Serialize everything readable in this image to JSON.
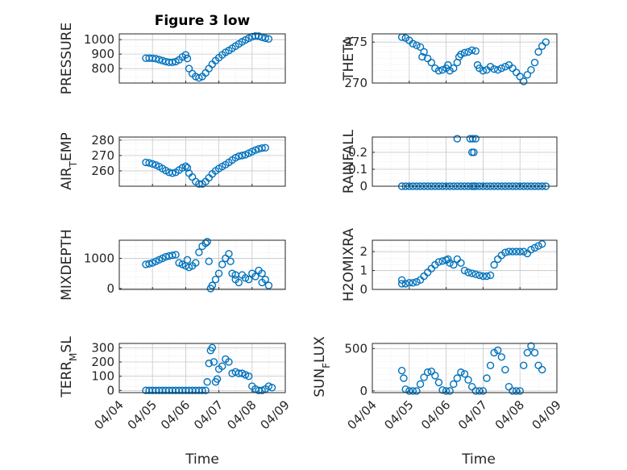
{
  "figure": {
    "title": "Figure 3 low",
    "xlabel": "Time",
    "xticks": [
      "04/04",
      "04/05",
      "04/06",
      "04/07",
      "04/08",
      "04/09"
    ],
    "marker_color": "#0072BD"
  },
  "chart_data": [
    {
      "type": "scatter",
      "name": "pressure",
      "ylabel": "PRESSURE",
      "title": "Figure 3 low",
      "xlim": [
        0,
        5
      ],
      "ylim": [
        700,
        1040
      ],
      "yticks": [
        800,
        900,
        1000
      ],
      "points": [
        [
          0.8,
          872
        ],
        [
          0.9,
          872
        ],
        [
          1.0,
          871
        ],
        [
          1.1,
          868
        ],
        [
          1.2,
          862
        ],
        [
          1.3,
          855
        ],
        [
          1.4,
          848
        ],
        [
          1.5,
          843
        ],
        [
          1.6,
          843
        ],
        [
          1.7,
          848
        ],
        [
          1.8,
          860
        ],
        [
          1.9,
          880
        ],
        [
          2.0,
          895
        ],
        [
          2.05,
          870
        ],
        [
          2.1,
          800
        ],
        [
          2.2,
          765
        ],
        [
          2.3,
          745
        ],
        [
          2.4,
          735
        ],
        [
          2.5,
          745
        ],
        [
          2.6,
          770
        ],
        [
          2.7,
          800
        ],
        [
          2.8,
          830
        ],
        [
          2.9,
          855
        ],
        [
          3.0,
          875
        ],
        [
          3.1,
          895
        ],
        [
          3.2,
          912
        ],
        [
          3.3,
          925
        ],
        [
          3.4,
          940
        ],
        [
          3.5,
          955
        ],
        [
          3.6,
          970
        ],
        [
          3.7,
          985
        ],
        [
          3.8,
          998
        ],
        [
          3.9,
          1010
        ],
        [
          4.0,
          1020
        ],
        [
          4.1,
          1025
        ],
        [
          4.2,
          1024
        ],
        [
          4.3,
          1016
        ],
        [
          4.4,
          1010
        ],
        [
          4.5,
          1005
        ]
      ]
    },
    {
      "type": "scatter",
      "name": "theta",
      "ylabel": "THETA",
      "xlim": [
        0,
        5
      ],
      "ylim": [
        270,
        276
      ],
      "yticks": [
        270,
        275
      ],
      "points": [
        [
          0.8,
          275.6
        ],
        [
          0.9,
          275.5
        ],
        [
          1.0,
          275.2
        ],
        [
          1.1,
          274.8
        ],
        [
          1.2,
          274.6
        ],
        [
          1.3,
          274.4
        ],
        [
          1.35,
          273.2
        ],
        [
          1.4,
          273.8
        ],
        [
          1.5,
          273.0
        ],
        [
          1.6,
          272.5
        ],
        [
          1.7,
          271.8
        ],
        [
          1.8,
          271.5
        ],
        [
          1.9,
          271.6
        ],
        [
          2.0,
          271.8
        ],
        [
          2.05,
          272.2
        ],
        [
          2.1,
          271.5
        ],
        [
          2.2,
          271.8
        ],
        [
          2.3,
          272.5
        ],
        [
          2.35,
          273.2
        ],
        [
          2.4,
          273.5
        ],
        [
          2.5,
          273.7
        ],
        [
          2.6,
          273.8
        ],
        [
          2.7,
          274.0
        ],
        [
          2.8,
          273.9
        ],
        [
          2.85,
          272.2
        ],
        [
          2.9,
          271.8
        ],
        [
          3.0,
          271.5
        ],
        [
          3.1,
          271.6
        ],
        [
          3.2,
          272.0
        ],
        [
          3.3,
          271.7
        ],
        [
          3.4,
          271.6
        ],
        [
          3.5,
          271.8
        ],
        [
          3.6,
          272.0
        ],
        [
          3.7,
          272.2
        ],
        [
          3.8,
          271.8
        ],
        [
          3.9,
          271.3
        ],
        [
          4.0,
          270.8
        ],
        [
          4.1,
          270.2
        ],
        [
          4.2,
          271.0
        ],
        [
          4.3,
          271.6
        ],
        [
          4.4,
          272.5
        ],
        [
          4.5,
          273.8
        ],
        [
          4.6,
          274.5
        ],
        [
          4.7,
          275.0
        ]
      ]
    },
    {
      "type": "scatter",
      "name": "air_temp",
      "ylabel": "AIR_TEMP",
      "xlim": [
        0,
        5
      ],
      "ylim": [
        250,
        282
      ],
      "yticks": [
        260,
        270,
        280
      ],
      "points": [
        [
          0.8,
          265.5
        ],
        [
          0.9,
          265.2
        ],
        [
          1.0,
          264.5
        ],
        [
          1.1,
          263.8
        ],
        [
          1.2,
          262.8
        ],
        [
          1.3,
          261.5
        ],
        [
          1.4,
          260.2
        ],
        [
          1.5,
          259.0
        ],
        [
          1.6,
          258.5
        ],
        [
          1.7,
          259.0
        ],
        [
          1.8,
          260.5
        ],
        [
          1.9,
          262.0
        ],
        [
          2.0,
          263.0
        ],
        [
          2.05,
          262.0
        ],
        [
          2.1,
          258.5
        ],
        [
          2.2,
          256.0
        ],
        [
          2.3,
          253.0
        ],
        [
          2.4,
          251.5
        ],
        [
          2.5,
          251.5
        ],
        [
          2.6,
          253.0
        ],
        [
          2.7,
          255.5
        ],
        [
          2.8,
          258.0
        ],
        [
          2.9,
          260.0
        ],
        [
          3.0,
          261.5
        ],
        [
          3.1,
          262.8
        ],
        [
          3.2,
          264.0
        ],
        [
          3.3,
          265.5
        ],
        [
          3.4,
          267.0
        ],
        [
          3.5,
          268.5
        ],
        [
          3.6,
          269.5
        ],
        [
          3.7,
          270.0
        ],
        [
          3.8,
          270.5
        ],
        [
          3.9,
          271.5
        ],
        [
          4.0,
          272.5
        ],
        [
          4.1,
          273.5
        ],
        [
          4.2,
          274.3
        ],
        [
          4.3,
          274.8
        ],
        [
          4.4,
          275.0
        ]
      ]
    },
    {
      "type": "scatter",
      "name": "rainfall",
      "ylabel": "RAINFALL",
      "xlim": [
        0,
        5
      ],
      "ylim": [
        0,
        0.29
      ],
      "yticks": [
        0,
        0.1,
        0.2
      ],
      "points": [
        [
          0.8,
          0
        ],
        [
          0.9,
          0
        ],
        [
          1.0,
          0
        ],
        [
          1.1,
          0
        ],
        [
          1.2,
          0
        ],
        [
          1.3,
          0
        ],
        [
          1.4,
          0
        ],
        [
          1.5,
          0
        ],
        [
          1.6,
          0
        ],
        [
          1.7,
          0
        ],
        [
          1.8,
          0
        ],
        [
          1.9,
          0
        ],
        [
          2.0,
          0
        ],
        [
          2.1,
          0
        ],
        [
          2.2,
          0
        ],
        [
          2.3,
          0
        ],
        [
          2.4,
          0
        ],
        [
          2.5,
          0
        ],
        [
          2.6,
          0
        ],
        [
          2.7,
          0
        ],
        [
          2.75,
          0
        ],
        [
          2.8,
          0
        ],
        [
          2.9,
          0
        ],
        [
          3.0,
          0
        ],
        [
          3.1,
          0
        ],
        [
          3.2,
          0
        ],
        [
          3.3,
          0
        ],
        [
          3.4,
          0
        ],
        [
          3.5,
          0
        ],
        [
          3.6,
          0
        ],
        [
          3.7,
          0
        ],
        [
          3.8,
          0
        ],
        [
          3.9,
          0
        ],
        [
          4.0,
          0
        ],
        [
          4.1,
          0
        ],
        [
          4.2,
          0
        ],
        [
          4.3,
          0
        ],
        [
          4.4,
          0
        ],
        [
          4.5,
          0
        ],
        [
          4.6,
          0
        ],
        [
          4.7,
          0
        ],
        [
          2.3,
          0.28
        ],
        [
          2.65,
          0.28
        ],
        [
          2.72,
          0.28
        ],
        [
          2.8,
          0.28
        ],
        [
          2.7,
          0.2
        ],
        [
          2.75,
          0.2
        ]
      ]
    },
    {
      "type": "scatter",
      "name": "mixdepth",
      "ylabel": "MIXDEPTH",
      "xlim": [
        0,
        5
      ],
      "ylim": [
        -30,
        1600
      ],
      "yticks": [
        0,
        1000
      ],
      "points": [
        [
          0.8,
          800
        ],
        [
          0.9,
          820
        ],
        [
          1.0,
          850
        ],
        [
          1.1,
          900
        ],
        [
          1.2,
          950
        ],
        [
          1.3,
          1000
        ],
        [
          1.4,
          1050
        ],
        [
          1.5,
          1080
        ],
        [
          1.6,
          1100
        ],
        [
          1.7,
          1120
        ],
        [
          1.8,
          850
        ],
        [
          1.9,
          800
        ],
        [
          2.0,
          750
        ],
        [
          2.05,
          950
        ],
        [
          2.1,
          700
        ],
        [
          2.2,
          750
        ],
        [
          2.3,
          850
        ],
        [
          2.4,
          1200
        ],
        [
          2.5,
          1400
        ],
        [
          2.6,
          1500
        ],
        [
          2.65,
          1550
        ],
        [
          2.7,
          900
        ],
        [
          2.75,
          0
        ],
        [
          2.8,
          100
        ],
        [
          2.9,
          300
        ],
        [
          3.0,
          500
        ],
        [
          3.1,
          800
        ],
        [
          3.2,
          1000
        ],
        [
          3.3,
          1150
        ],
        [
          3.35,
          900
        ],
        [
          3.4,
          500
        ],
        [
          3.5,
          300
        ],
        [
          3.6,
          200
        ],
        [
          3.7,
          450
        ],
        [
          3.8,
          350
        ],
        [
          3.9,
          300
        ],
        [
          4.0,
          500
        ],
        [
          4.1,
          400
        ],
        [
          4.2,
          600
        ],
        [
          4.3,
          500
        ],
        [
          4.4,
          300
        ],
        [
          4.5,
          100
        ],
        [
          4.3,
          200
        ],
        [
          3.5,
          450
        ]
      ]
    },
    {
      "type": "scatter",
      "name": "h2omixra",
      "ylabel": "H2OMIXRA",
      "xlim": [
        0,
        5
      ],
      "ylim": [
        0,
        2.6
      ],
      "yticks": [
        0,
        1,
        2
      ],
      "points": [
        [
          0.8,
          0.3
        ],
        [
          0.9,
          0.3
        ],
        [
          1.0,
          0.35
        ],
        [
          1.1,
          0.35
        ],
        [
          1.2,
          0.4
        ],
        [
          1.3,
          0.5
        ],
        [
          1.4,
          0.7
        ],
        [
          1.5,
          0.9
        ],
        [
          1.6,
          1.1
        ],
        [
          1.7,
          1.3
        ],
        [
          1.8,
          1.45
        ],
        [
          1.9,
          1.5
        ],
        [
          2.0,
          1.55
        ],
        [
          2.05,
          1.6
        ],
        [
          2.1,
          1.4
        ],
        [
          2.2,
          1.3
        ],
        [
          2.3,
          1.6
        ],
        [
          2.4,
          1.4
        ],
        [
          2.5,
          1.0
        ],
        [
          2.6,
          0.9
        ],
        [
          2.7,
          0.85
        ],
        [
          2.8,
          0.8
        ],
        [
          2.9,
          0.75
        ],
        [
          3.0,
          0.7
        ],
        [
          3.1,
          0.7
        ],
        [
          3.2,
          0.75
        ],
        [
          3.3,
          1.3
        ],
        [
          3.4,
          1.6
        ],
        [
          3.5,
          1.8
        ],
        [
          3.6,
          1.95
        ],
        [
          3.7,
          2.0
        ],
        [
          3.8,
          2.0
        ],
        [
          3.9,
          2.0
        ],
        [
          4.0,
          2.0
        ],
        [
          4.1,
          2.0
        ],
        [
          4.2,
          1.9
        ],
        [
          4.3,
          2.1
        ],
        [
          4.4,
          2.2
        ],
        [
          4.5,
          2.3
        ],
        [
          4.6,
          2.4
        ],
        [
          0.8,
          0.5
        ]
      ]
    },
    {
      "type": "scatter",
      "name": "terr_msl",
      "ylabel": "TERR_MSL",
      "xlim": [
        0,
        5
      ],
      "ylim": [
        -15,
        330
      ],
      "yticks": [
        0,
        100,
        200,
        300
      ],
      "points": [
        [
          0.8,
          0
        ],
        [
          0.9,
          0
        ],
        [
          1.0,
          0
        ],
        [
          1.1,
          0
        ],
        [
          1.2,
          0
        ],
        [
          1.3,
          0
        ],
        [
          1.4,
          0
        ],
        [
          1.5,
          0
        ],
        [
          1.6,
          0
        ],
        [
          1.7,
          0
        ],
        [
          1.8,
          0
        ],
        [
          1.9,
          0
        ],
        [
          2.0,
          0
        ],
        [
          2.1,
          0
        ],
        [
          2.2,
          0
        ],
        [
          2.3,
          0
        ],
        [
          2.4,
          0
        ],
        [
          2.5,
          0
        ],
        [
          2.6,
          0
        ],
        [
          2.65,
          60
        ],
        [
          2.7,
          190
        ],
        [
          2.75,
          280
        ],
        [
          2.8,
          300
        ],
        [
          2.85,
          200
        ],
        [
          2.9,
          60
        ],
        [
          2.95,
          80
        ],
        [
          3.0,
          150
        ],
        [
          3.1,
          170
        ],
        [
          3.2,
          220
        ],
        [
          3.3,
          200
        ],
        [
          3.4,
          120
        ],
        [
          3.5,
          130
        ],
        [
          3.6,
          120
        ],
        [
          3.7,
          120
        ],
        [
          3.8,
          110
        ],
        [
          3.9,
          100
        ],
        [
          4.0,
          30
        ],
        [
          4.1,
          10
        ],
        [
          4.2,
          0
        ],
        [
          4.3,
          0
        ],
        [
          4.4,
          10
        ],
        [
          4.5,
          30
        ],
        [
          4.6,
          20
        ]
      ]
    },
    {
      "type": "scatter",
      "name": "sun_flux",
      "ylabel": "SUN_FLUX",
      "xlim": [
        0,
        5
      ],
      "ylim": [
        -20,
        560
      ],
      "yticks": [
        0,
        500
      ],
      "points": [
        [
          0.8,
          240
        ],
        [
          0.85,
          150
        ],
        [
          0.9,
          20
        ],
        [
          1.0,
          0
        ],
        [
          1.1,
          0
        ],
        [
          1.2,
          0
        ],
        [
          1.3,
          80
        ],
        [
          1.4,
          160
        ],
        [
          1.5,
          220
        ],
        [
          1.6,
          230
        ],
        [
          1.7,
          180
        ],
        [
          1.8,
          100
        ],
        [
          1.9,
          10
        ],
        [
          2.0,
          0
        ],
        [
          2.1,
          0
        ],
        [
          2.2,
          80
        ],
        [
          2.3,
          150
        ],
        [
          2.4,
          220
        ],
        [
          2.5,
          200
        ],
        [
          2.6,
          130
        ],
        [
          2.7,
          50
        ],
        [
          2.8,
          0
        ],
        [
          2.9,
          0
        ],
        [
          3.0,
          0
        ],
        [
          3.1,
          150
        ],
        [
          3.2,
          300
        ],
        [
          3.3,
          450
        ],
        [
          3.4,
          480
        ],
        [
          3.5,
          400
        ],
        [
          3.6,
          250
        ],
        [
          3.7,
          50
        ],
        [
          3.8,
          0
        ],
        [
          3.9,
          0
        ],
        [
          4.0,
          0
        ],
        [
          4.1,
          300
        ],
        [
          4.2,
          450
        ],
        [
          4.3,
          530
        ],
        [
          4.4,
          450
        ],
        [
          4.5,
          300
        ],
        [
          4.6,
          250
        ]
      ]
    }
  ]
}
